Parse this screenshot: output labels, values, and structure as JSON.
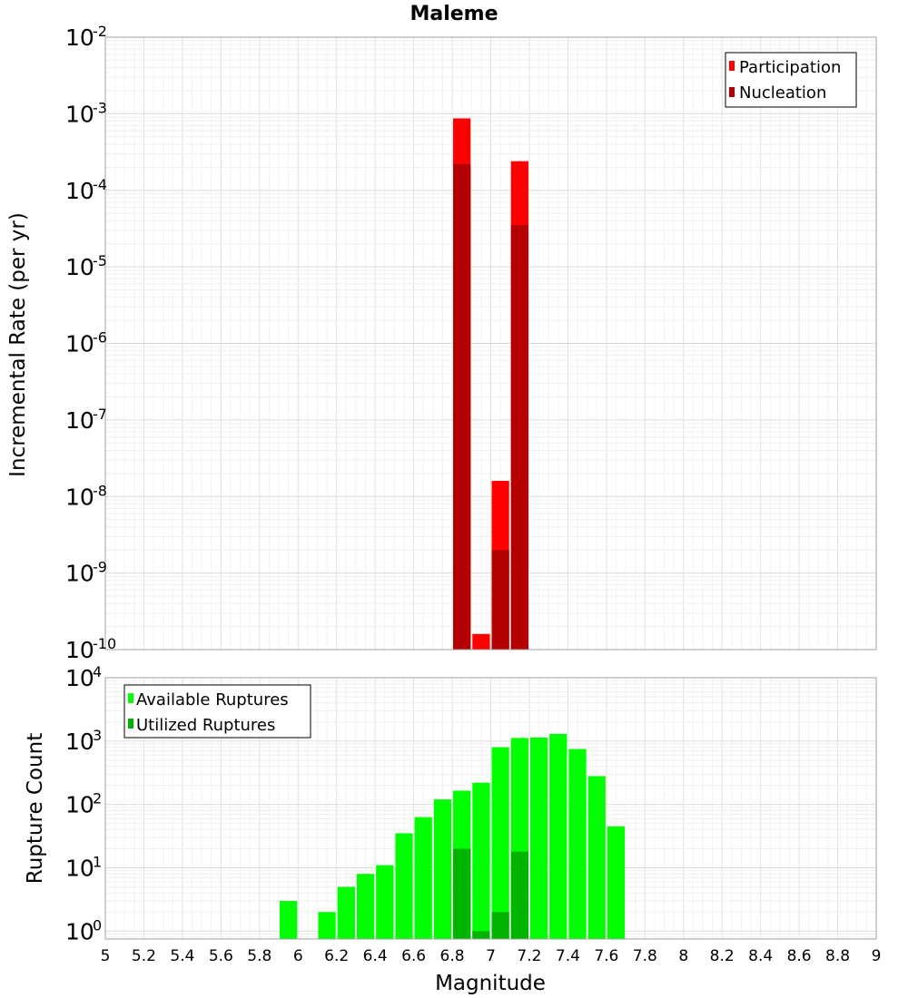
{
  "chart_data": [
    {
      "type": "bar",
      "title": "Maleme",
      "ylabel": "Incremental Rate (per yr)",
      "xlabel": "",
      "yscale": "log",
      "xlim": [
        5,
        9
      ],
      "ylim": [
        1e-10,
        0.01
      ],
      "y_tick_exponents": [
        -10,
        -9,
        -8,
        -7,
        -6,
        -5,
        -4,
        -3,
        -2
      ],
      "grid": true,
      "legend_position": "top-right",
      "bin_width": 0.1,
      "series": [
        {
          "name": "Participation",
          "color": "#ff0000",
          "x": [
            6.85,
            6.95,
            7.05,
            7.15
          ],
          "values": [
            0.00087,
            1.6e-10,
            1.6e-08,
            0.00024
          ]
        },
        {
          "name": "Nucleation",
          "color": "#b40000",
          "x": [
            6.85,
            7.05,
            7.15
          ],
          "values": [
            0.00022,
            2e-09,
            3.5e-05
          ]
        }
      ]
    },
    {
      "type": "bar",
      "title": "",
      "ylabel": "Rupture Count",
      "xlabel": "Magnitude",
      "yscale": "log",
      "xlim": [
        5,
        9
      ],
      "ylim": [
        0.75,
        10000
      ],
      "y_tick_exponents": [
        0,
        1,
        2,
        3,
        4
      ],
      "x_ticks": [
        "5",
        "5.2",
        "5.4",
        "5.6",
        "5.8",
        "6",
        "6.2",
        "6.4",
        "6.6",
        "6.8",
        "7",
        "7.2",
        "7.4",
        "7.6",
        "7.8",
        "8",
        "8.2",
        "8.4",
        "8.6",
        "8.8",
        "9"
      ],
      "grid": true,
      "legend_position": "top-left",
      "bin_width": 0.1,
      "series": [
        {
          "name": "Available Ruptures",
          "color": "#00ff00",
          "x": [
            5.95,
            6.15,
            6.25,
            6.35,
            6.45,
            6.55,
            6.65,
            6.75,
            6.85,
            6.95,
            7.05,
            7.15,
            7.25,
            7.35,
            7.45,
            7.55,
            7.65
          ],
          "values": [
            3,
            2,
            5,
            8,
            11,
            35,
            63,
            120,
            165,
            220,
            800,
            1120,
            1140,
            1300,
            750,
            280,
            45
          ]
        },
        {
          "name": "Utilized Ruptures",
          "color": "#00b400",
          "x": [
            6.85,
            6.95,
            7.05,
            7.15
          ],
          "values": [
            20,
            1,
            2,
            18
          ]
        }
      ]
    }
  ]
}
